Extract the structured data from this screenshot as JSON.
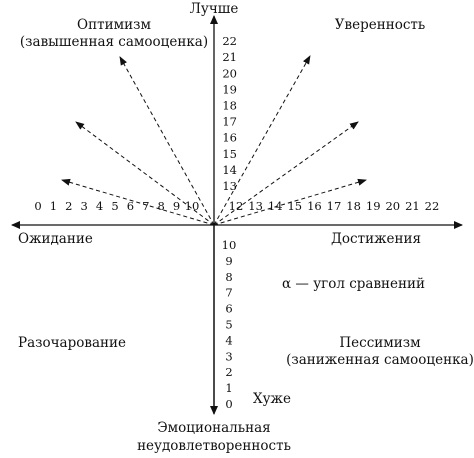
{
  "labels": {
    "top": "Лучше",
    "bottom_line1": "Эмоциональная",
    "bottom_line2": "неудовлетворенность",
    "left": "Ожидание",
    "right": "Достижения",
    "top_left_line1": "Оптимизм",
    "top_left_line2": "(завышенная самооценка)",
    "top_right": "Уверенность",
    "bottom_left": "Разочарование",
    "bottom_right_line1": "Пессимизм",
    "bottom_right_line2": "(заниженная самооценка)",
    "worse": "Хуже",
    "alpha_note": "α — угол сравнений"
  },
  "scales": {
    "left_axis": [
      "0",
      "1",
      "2",
      "3",
      "4",
      "5",
      "6",
      "7",
      "8",
      "9",
      "10"
    ],
    "right_axis": [
      "12",
      "13",
      "14",
      "15",
      "16",
      "17",
      "18",
      "19",
      "20",
      "21",
      "22"
    ],
    "top_axis": [
      "13",
      "14",
      "15",
      "16",
      "17",
      "18",
      "19",
      "20",
      "21",
      "22"
    ],
    "bottom_axis": [
      "10",
      "9",
      "8",
      "7",
      "6",
      "5",
      "4",
      "3",
      "2",
      "1",
      "0"
    ]
  },
  "colors": {
    "ink": "#111111",
    "background": "#ffffff"
  }
}
